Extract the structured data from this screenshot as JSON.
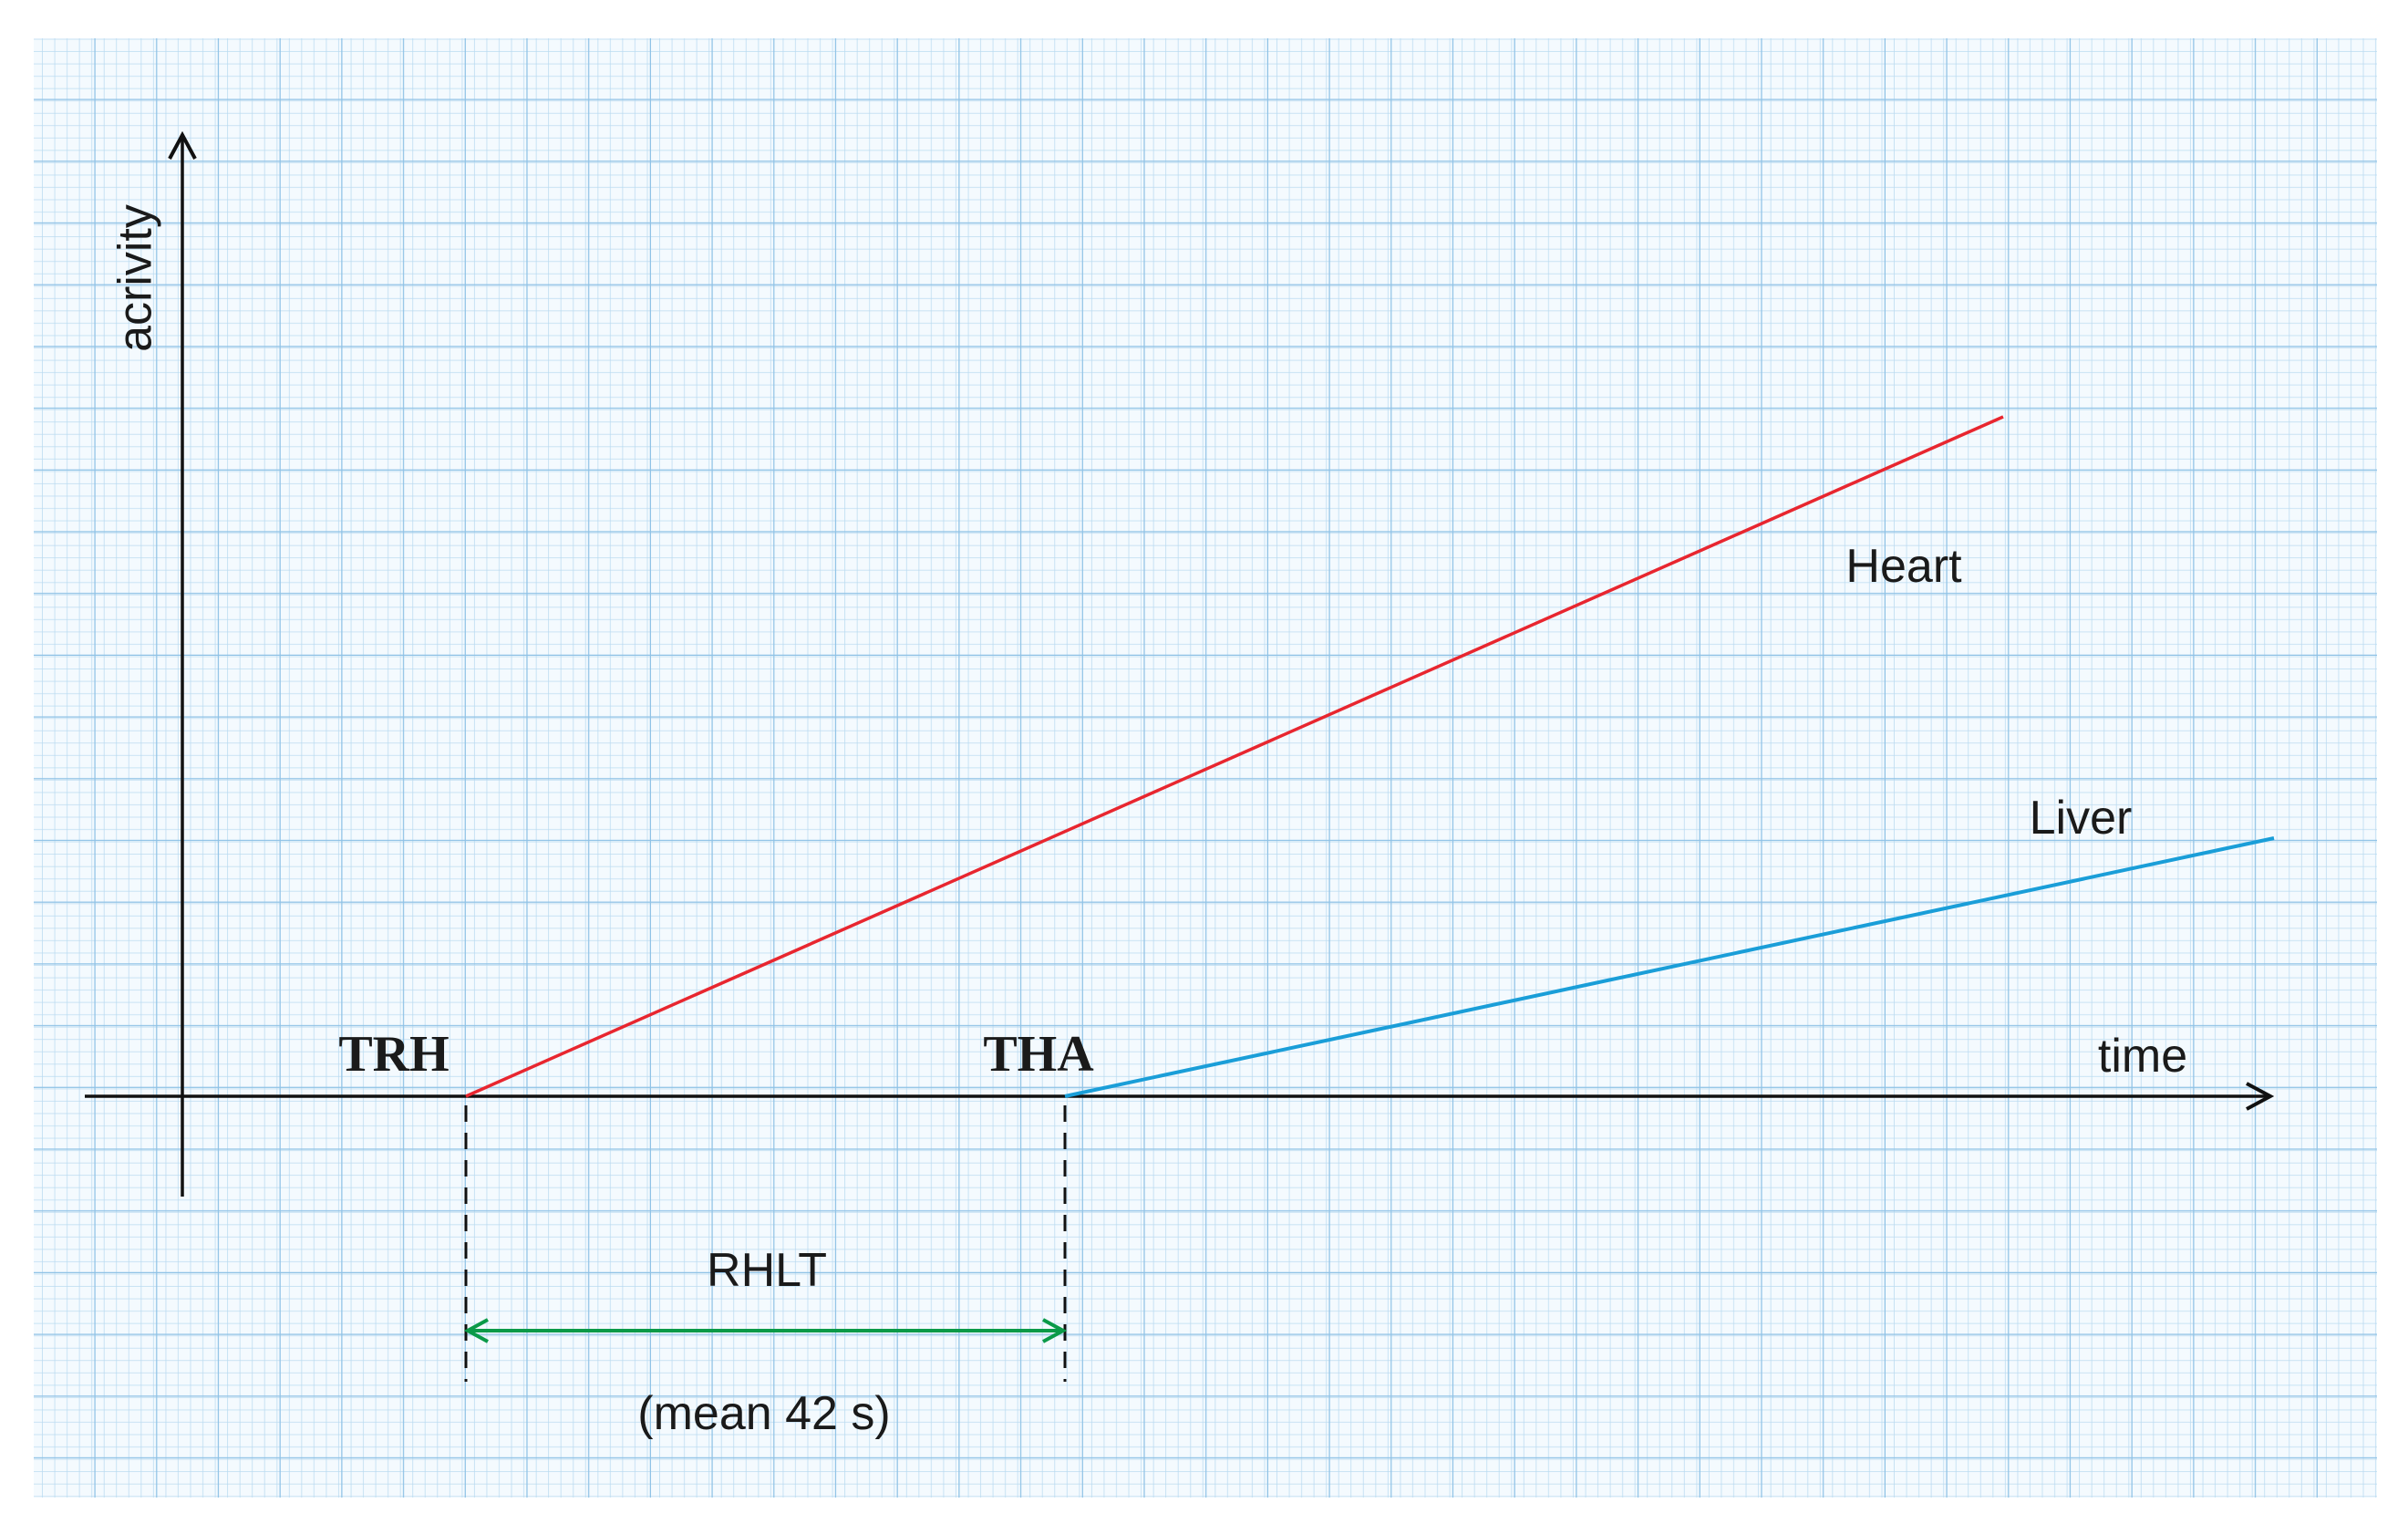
{
  "axes": {
    "y_label": "acrivity",
    "x_label": "time"
  },
  "curves": [
    {
      "label": "Heart"
    },
    {
      "label": "Liver"
    }
  ],
  "markers": [
    {
      "label": "TRH"
    },
    {
      "label": "THA"
    }
  ],
  "interval": {
    "label": "RHLT",
    "note": "(mean 42 s)"
  }
}
